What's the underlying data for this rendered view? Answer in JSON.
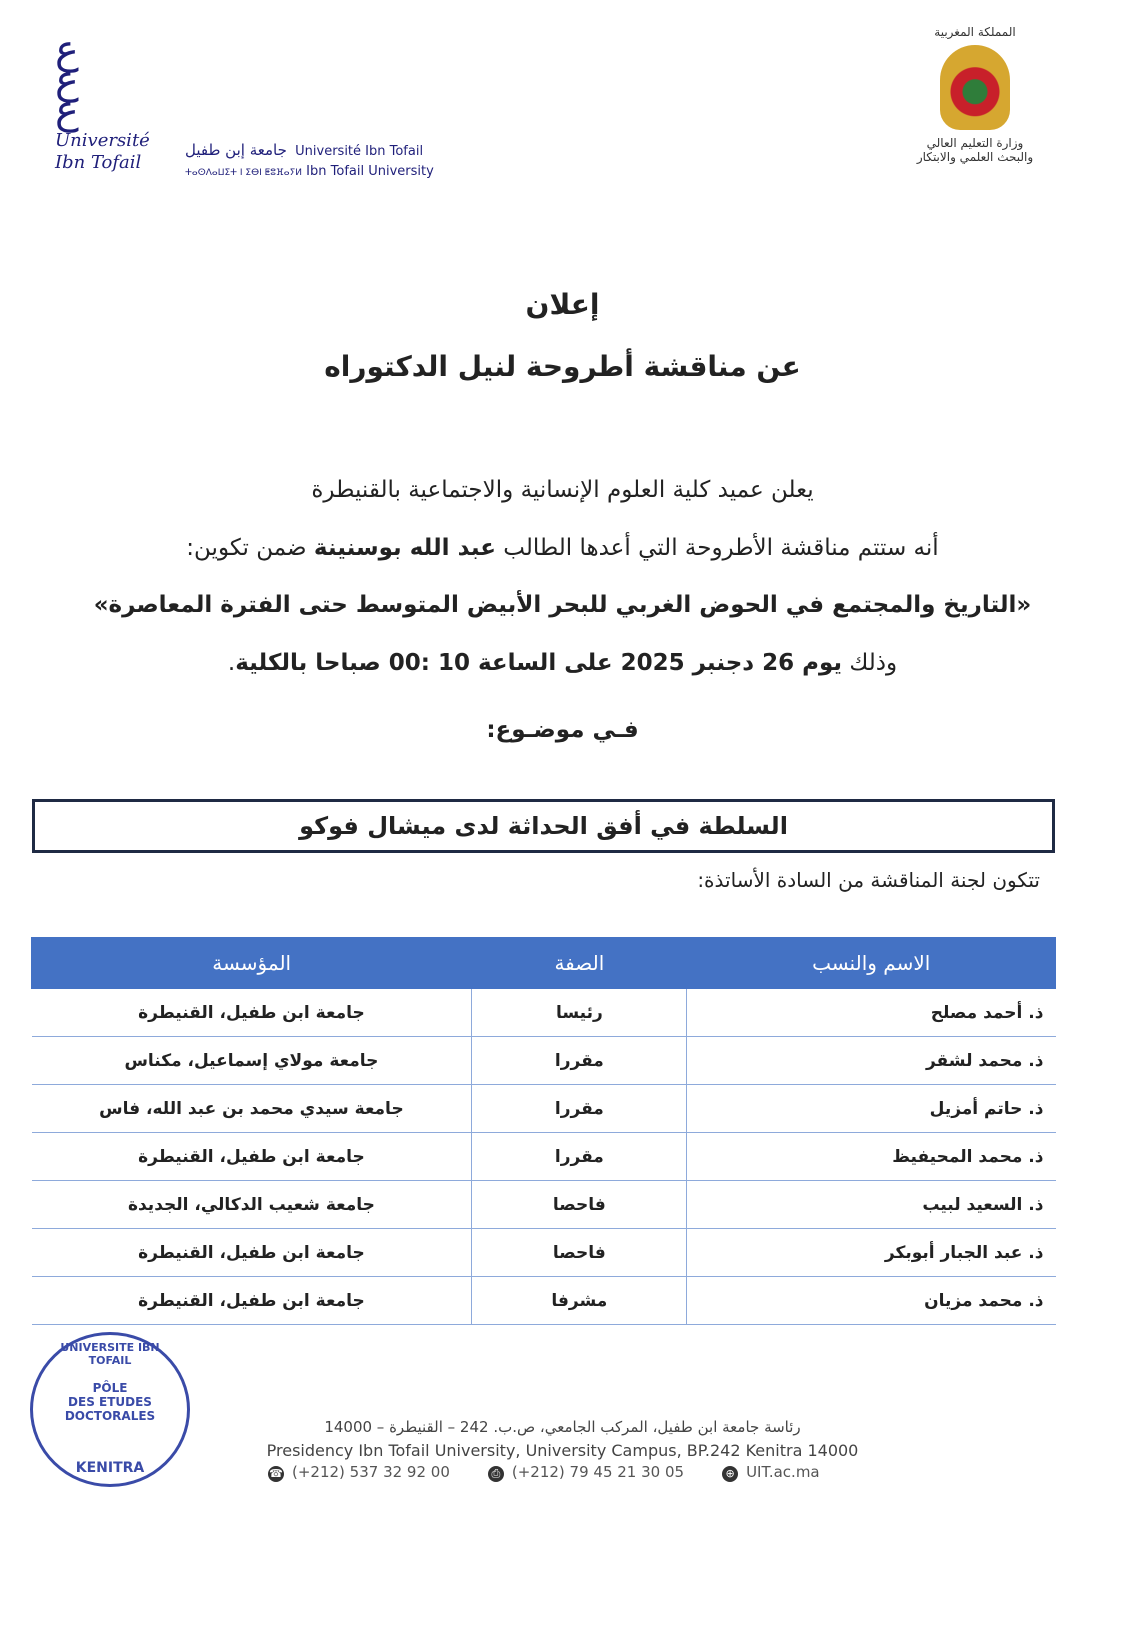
{
  "header": {
    "left_logo": {
      "ar": "جامعة إبن طفيل",
      "fr": "Université Ibn Tofail",
      "en": "Ibn Tofail University",
      "tifinagh": "ⵜⴰⵙⴷⴰⵡⵉⵜ ⵏ ⵉⴱⵏ ⵟⵓⴼⴰⵢⵍ",
      "script_label": "Université Ibn Tofail"
    },
    "right_logo": {
      "kingdom": "المملكة المغربية",
      "ministry_line1": "وزارة التعليم العالي",
      "ministry_line2": "والبحث العلمي والابتكار"
    }
  },
  "title": {
    "line1": "إعلان",
    "line2": "عن مناقشة أطروحة لنيل الدكتوراه"
  },
  "body": {
    "line1": "يعلن عميد كلية العلوم الإنسانية والاجتماعية  بالقنيطرة",
    "line2_pre": "أنه ستتم مناقشة الأطروحة التي أعدها الطالب ",
    "student": "عبد الله بوسنينة",
    "line2_post": " ضمن تكوين:",
    "program": "«التاريخ والمجتمع في الحوض الغربي للبحر الأبيض المتوسط حتى الفترة المعاصرة»",
    "date_pre": "وذلك ",
    "date_bold": "يوم 26 دجنبر 2025 على الساعة 10 :00 صباحا بالكلية",
    "date_post": ".",
    "subject_label": "فـي موضـوع:",
    "subject": "السلطة في أفق الحداثة لدى ميشال فوكو",
    "jury_intro": "تتكون لجنة المناقشة من السادة الأساتذة:"
  },
  "table": {
    "headers": [
      "الاسم والنسب",
      "الصفة",
      "المؤسسة"
    ],
    "rows": [
      [
        "ذ. أحمد مصلح",
        "رئيسا",
        "جامعة ابن طفيل، القنيطرة"
      ],
      [
        "ذ. محمد لشقر",
        "مقررا",
        "جامعة مولاي إسماعيل، مكناس"
      ],
      [
        "ذ. حاتم أمزيل",
        "مقررا",
        "جامعة سيدي محمد بن عبد الله، فاس"
      ],
      [
        "ذ. محمد المحيفيظ",
        "مقررا",
        "جامعة ابن طفيل، القنيطرة"
      ],
      [
        "ذ. السعيد لبيب",
        "فاحصا",
        "جامعة شعيب الدكالي، الجديدة"
      ],
      [
        "ذ. عبد الجبار أبوبكر",
        "فاحصا",
        "جامعة ابن طفيل، القنيطرة"
      ],
      [
        "ذ. محمد مزيان",
        "مشرفا",
        "جامعة ابن طفيل، القنيطرة"
      ]
    ],
    "header_color": "#4472c4"
  },
  "stamp": {
    "ring_top": "UNIVERSITE IBN TOFAIL",
    "line1": "PÔLE",
    "line2": "DES ETUDES",
    "line3": "DOCTORALES",
    "ring_bottom": "KENITRA"
  },
  "footer": {
    "address_ar": "رئاسة جامعة ابن طفيل، المركب الجامعي، ص.ب. 242 – القنيطرة – 14000",
    "address_en": "Presidency Ibn Tofail University, University Campus, BP.242 Kenitra 14000",
    "phone": "(+212) 537 32 92 00",
    "fax": "(+212) 79 45 21 30 05",
    "web": "UIT.ac.ma"
  }
}
